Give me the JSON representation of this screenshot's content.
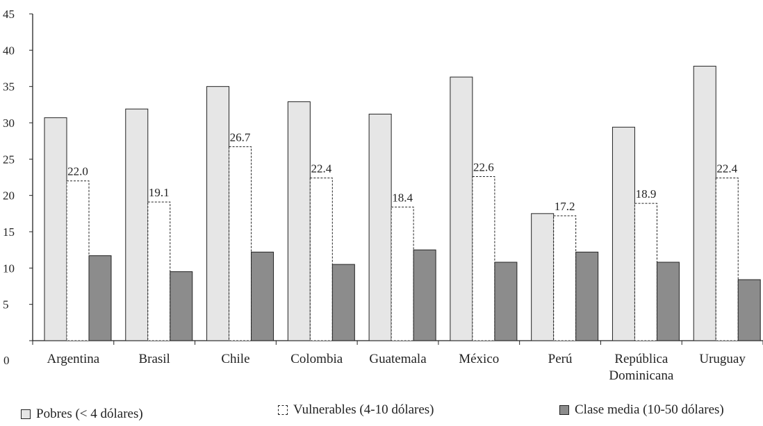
{
  "chart_data": {
    "type": "bar",
    "categories": [
      "Argentina",
      "Brasil",
      "Chile",
      "Colombia",
      "Guatemala",
      "México",
      "Perú",
      "República Dominicana",
      "Uruguay"
    ],
    "series": [
      {
        "name": "Pobres (< 4 dólares)",
        "color": "#e6e6e6",
        "values": [
          30.7,
          31.9,
          35.0,
          32.9,
          31.2,
          36.3,
          17.5,
          29.4,
          37.8
        ]
      },
      {
        "name": "Vulnerables (4-10 dólares)",
        "color": "#ffffff",
        "values": [
          22.0,
          19.1,
          26.7,
          22.4,
          18.4,
          22.6,
          17.2,
          18.9,
          22.4
        ],
        "value_labels": [
          "22.0",
          "19.1",
          "26.7",
          "22.4",
          "18.4",
          "22.6",
          "17.2",
          "18.9",
          "22.4"
        ]
      },
      {
        "name": "Clase media (10-50 dólares)",
        "color": "#8c8c8c",
        "values": [
          11.7,
          9.5,
          12.2,
          10.5,
          12.5,
          10.8,
          12.2,
          10.8,
          8.4
        ]
      }
    ],
    "ylim": [
      0,
      45
    ],
    "yticks": [
      0,
      5,
      10,
      15,
      20,
      25,
      30,
      35,
      40,
      45
    ],
    "grid": false
  }
}
